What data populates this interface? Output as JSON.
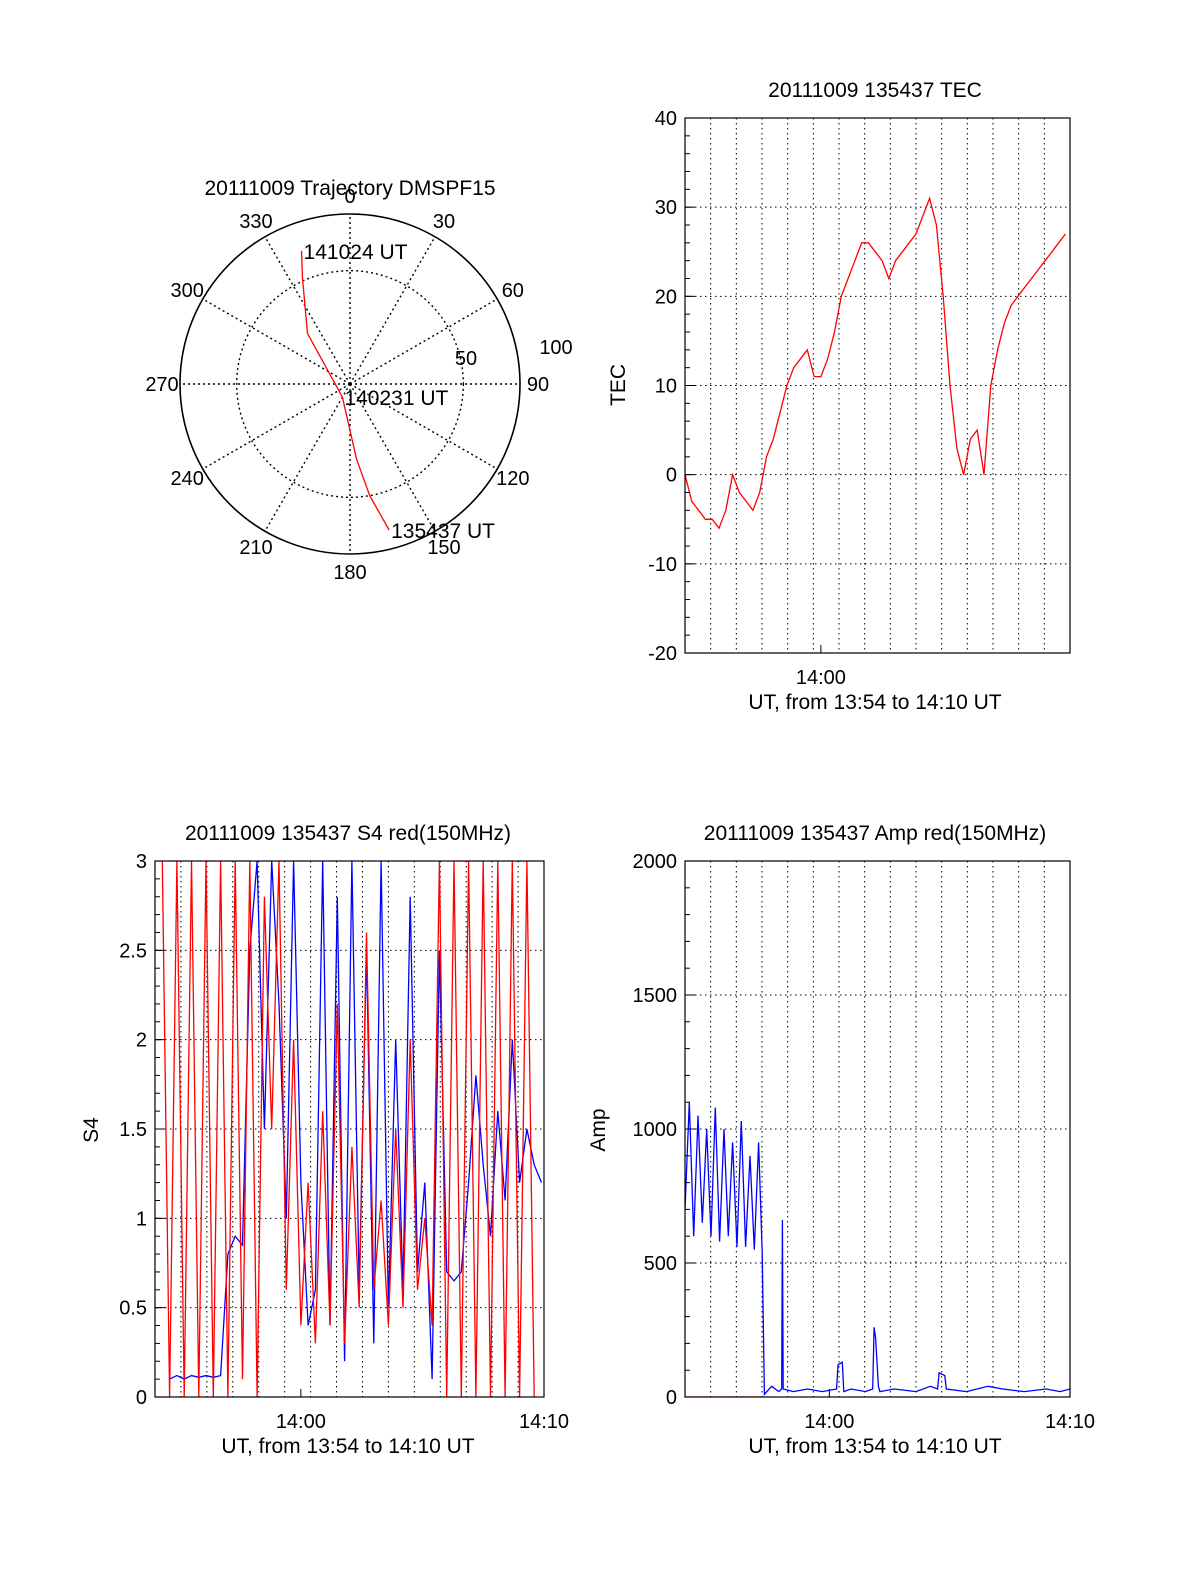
{
  "colors": {
    "red": "#ff0000",
    "blue": "#0000ff",
    "axis": "#000000",
    "grid": "#000000"
  },
  "chart_data": [
    {
      "type": "polar",
      "title": "20111009 Trajectory DMSPF15",
      "azimuth_labels": [
        "0",
        "30",
        "60",
        "90",
        "120",
        "150",
        "180",
        "210",
        "240",
        "270",
        "300",
        "330"
      ],
      "radial_labels": [
        "50",
        "100"
      ],
      "trajectory_color": "red",
      "trajectory": [
        {
          "az": 165,
          "el": 10,
          "label": "135437 UT"
        },
        {
          "az": 170,
          "el": 30
        },
        {
          "az": 175,
          "el": 50
        },
        {
          "az": 210,
          "el": 82,
          "label": "140231 UT"
        },
        {
          "az": 320,
          "el": 55
        },
        {
          "az": 336,
          "el": 28
        },
        {
          "az": 340,
          "el": 15,
          "label": "141024 UT"
        }
      ]
    },
    {
      "type": "line",
      "title": "20111009 135437 TEC",
      "xlabel": "UT, from 13:54 to 14:10 UT",
      "ylabel": "TEC",
      "xlim": [
        13.9,
        14.1833
      ],
      "ylim": [
        -20,
        40
      ],
      "yticks": [
        "40",
        "30",
        "20",
        "10",
        "0",
        "-10",
        "-20"
      ],
      "xticks": [
        {
          "value": 14.0,
          "label": "14:00"
        }
      ],
      "grid": true,
      "series": [
        {
          "color": "red",
          "x": [
            13.9,
            13.905,
            13.91,
            13.915,
            13.92,
            13.925,
            13.93,
            13.935,
            13.94,
            13.945,
            13.95,
            13.955,
            13.96,
            13.965,
            13.97,
            13.975,
            13.98,
            13.985,
            13.99,
            13.995,
            14.0,
            14.005,
            14.01,
            14.015,
            14.02,
            14.025,
            14.03,
            14.035,
            14.04,
            14.045,
            14.05,
            14.055,
            14.06,
            14.065,
            14.07,
            14.075,
            14.08,
            14.085,
            14.09,
            14.095,
            14.1,
            14.105,
            14.11,
            14.115,
            14.12,
            14.125,
            14.13,
            14.135,
            14.14,
            14.145,
            14.15,
            14.155,
            14.16,
            14.165,
            14.17,
            14.175,
            14.18
          ],
          "y": [
            0,
            -3,
            -4,
            -5,
            -5,
            -6,
            -4,
            0,
            -2,
            -3,
            -4,
            -2,
            2,
            4,
            7,
            10,
            12,
            13,
            14,
            11,
            11,
            13,
            16,
            20,
            22,
            24,
            26,
            26,
            25,
            24,
            22,
            24,
            25,
            26,
            27,
            29,
            31,
            28,
            20,
            10,
            3,
            0,
            4,
            5,
            0,
            10,
            14,
            17,
            19,
            20,
            21,
            22,
            23,
            24,
            25,
            26,
            27
          ]
        }
      ]
    },
    {
      "type": "line",
      "title": "20111009 135437 S4 red(150MHz)",
      "xlabel": "UT, from 13:54 to 14:10 UT",
      "ylabel": "S4",
      "xlim": [
        13.9,
        14.1667
      ],
      "ylim": [
        0,
        3
      ],
      "yticks": [
        "3",
        "2.5",
        "2",
        "1.5",
        "1",
        "0.5",
        "0"
      ],
      "xticks": [
        {
          "value": 14.0,
          "label": "14:00"
        },
        {
          "value": 14.1667,
          "label": "14:10"
        }
      ],
      "grid": true,
      "series": [
        {
          "color": "blue",
          "x": [
            13.91,
            13.915,
            13.92,
            13.925,
            13.93,
            13.935,
            13.94,
            13.945,
            13.95,
            13.955,
            13.96,
            13.965,
            13.97,
            13.975,
            13.98,
            13.985,
            13.99,
            13.995,
            14.0,
            14.005,
            14.01,
            14.015,
            14.02,
            14.025,
            14.03,
            14.035,
            14.04,
            14.045,
            14.05,
            14.055,
            14.06,
            14.065,
            14.07,
            14.075,
            14.08,
            14.085,
            14.09,
            14.095,
            14.1,
            14.105,
            14.11,
            14.115,
            14.12,
            14.125,
            14.13,
            14.135,
            14.14,
            14.145,
            14.15,
            14.155,
            14.16,
            14.165
          ],
          "y": [
            0.1,
            0.12,
            0.1,
            0.12,
            0.11,
            0.12,
            0.11,
            0.12,
            0.8,
            0.9,
            0.85,
            2.5,
            3.0,
            1.5,
            3.0,
            2.2,
            1.0,
            3.0,
            1.2,
            0.4,
            0.6,
            3.0,
            0.4,
            2.8,
            0.2,
            3.0,
            0.6,
            2.5,
            0.3,
            3.0,
            0.5,
            2.0,
            0.6,
            2.8,
            0.7,
            1.2,
            0.1,
            2.5,
            0.7,
            0.65,
            0.7,
            1.2,
            1.8,
            1.3,
            0.9,
            1.6,
            1.1,
            2.0,
            1.2,
            1.5,
            1.3,
            1.2
          ]
        },
        {
          "color": "red",
          "x": [
            13.905,
            13.91,
            13.915,
            13.92,
            13.925,
            13.93,
            13.935,
            13.94,
            13.945,
            13.95,
            13.955,
            13.96,
            13.965,
            13.97,
            13.975,
            13.98,
            13.985,
            13.99,
            13.995,
            14.0,
            14.005,
            14.01,
            14.015,
            14.02,
            14.025,
            14.03,
            14.035,
            14.04,
            14.045,
            14.05,
            14.055,
            14.06,
            14.065,
            14.07,
            14.075,
            14.08,
            14.085,
            14.09,
            14.095,
            14.1,
            14.105,
            14.11,
            14.115,
            14.12,
            14.125,
            14.13,
            14.135,
            14.14,
            14.145,
            14.15,
            14.155,
            14.16
          ],
          "y": [
            3.0,
            0.0,
            3.0,
            0.0,
            3.0,
            0.0,
            3.0,
            0.0,
            3.0,
            0.0,
            3.0,
            0.1,
            3.0,
            0.0,
            2.8,
            1.5,
            3.0,
            0.6,
            2.0,
            0.4,
            1.2,
            0.3,
            1.6,
            0.4,
            2.2,
            0.3,
            1.4,
            0.5,
            2.6,
            0.6,
            1.1,
            0.4,
            1.5,
            0.5,
            2.0,
            0.6,
            1.0,
            0.4,
            3.0,
            0.0,
            3.0,
            0.0,
            3.0,
            0.0,
            3.0,
            0.0,
            3.0,
            0.0,
            3.0,
            0.0,
            3.0,
            0.0
          ]
        }
      ]
    },
    {
      "type": "line",
      "title": "20111009 135437 Amp red(150MHz)",
      "xlabel": "UT, from 13:54 to 14:10 UT",
      "ylabel": "Amp",
      "xlim": [
        13.9,
        14.1667
      ],
      "ylim": [
        0,
        2000
      ],
      "yticks": [
        "2000",
        "1500",
        "1000",
        "500",
        "0"
      ],
      "xticks": [
        {
          "value": 14.0,
          "label": "14:00"
        },
        {
          "value": 14.1667,
          "label": "14:10"
        }
      ],
      "grid": true,
      "series": [
        {
          "color": "blue",
          "x": [
            13.9,
            13.903,
            13.906,
            13.909,
            13.912,
            13.915,
            13.918,
            13.921,
            13.924,
            13.927,
            13.93,
            13.933,
            13.936,
            13.939,
            13.942,
            13.945,
            13.948,
            13.951,
            13.9535,
            13.955,
            13.96,
            13.965,
            13.967,
            13.9675,
            13.968,
            13.975,
            13.985,
            13.995,
            14.005,
            14.006,
            14.009,
            14.01,
            14.015,
            14.025,
            14.03,
            14.031,
            14.032,
            14.034,
            14.035,
            14.045,
            14.06,
            14.07,
            14.075,
            14.076,
            14.08,
            14.081,
            14.095,
            14.11,
            14.12,
            14.135,
            14.15,
            14.16,
            14.1667
          ],
          "y": [
            700,
            1100,
            600,
            1050,
            650,
            1000,
            600,
            1080,
            580,
            1000,
            600,
            950,
            560,
            1030,
            560,
            900,
            550,
            950,
            540,
            10,
            40,
            20,
            30,
            660,
            30,
            20,
            30,
            20,
            30,
            120,
            130,
            20,
            30,
            20,
            30,
            260,
            220,
            40,
            20,
            30,
            20,
            40,
            30,
            90,
            80,
            30,
            20,
            40,
            30,
            20,
            30,
            20,
            30
          ]
        },
        {
          "color": "red",
          "x": [
            13.9,
            13.955
          ],
          "y": [
            0,
            0
          ]
        }
      ]
    }
  ]
}
